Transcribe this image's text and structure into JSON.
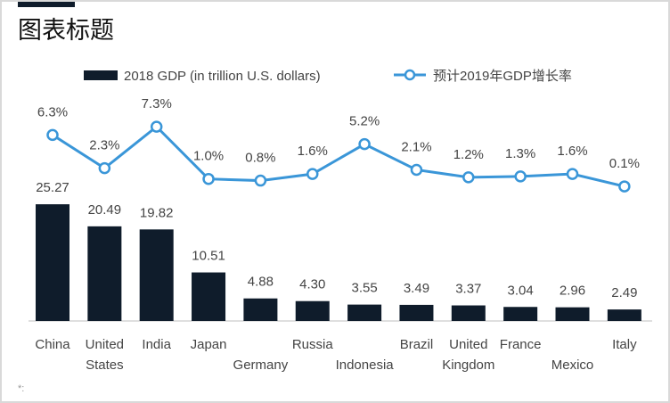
{
  "title": "图表标题",
  "footnote": "*:",
  "colors": {
    "bar": "#0f1c2b",
    "line": "#3a96d8",
    "text": "#444444"
  },
  "chart_data": {
    "type": "bar+line",
    "title": "图表标题",
    "categories": [
      "China",
      "United States",
      "India",
      "Japan",
      "Germany",
      "Russia",
      "Indonesia",
      "Brazil",
      "United Kingdom",
      "France",
      "Mexico",
      "Italy"
    ],
    "series": [
      {
        "name": "2018 GDP (in trillion U.S. dollars)",
        "type": "bar",
        "values": [
          25.27,
          20.49,
          19.82,
          10.51,
          4.88,
          4.3,
          3.55,
          3.49,
          3.37,
          3.04,
          2.96,
          2.49
        ],
        "labels": [
          "25.27",
          "20.49",
          "19.82",
          "10.51",
          "4.88",
          "4.30",
          "3.55",
          "3.49",
          "3.37",
          "3.04",
          "2.96",
          "2.49"
        ]
      },
      {
        "name": "预计2019年GDP增长率",
        "type": "line",
        "values": [
          6.3,
          2.3,
          7.3,
          1.0,
          0.8,
          1.6,
          5.2,
          2.1,
          1.2,
          1.3,
          1.6,
          0.1
        ],
        "labels": [
          "6.3%",
          "2.3%",
          "7.3%",
          "1.0%",
          "0.8%",
          "1.6%",
          "5.2%",
          "2.1%",
          "1.2%",
          "1.3%",
          "1.6%",
          "0.1%"
        ]
      }
    ],
    "legend": "top",
    "grid": false
  }
}
